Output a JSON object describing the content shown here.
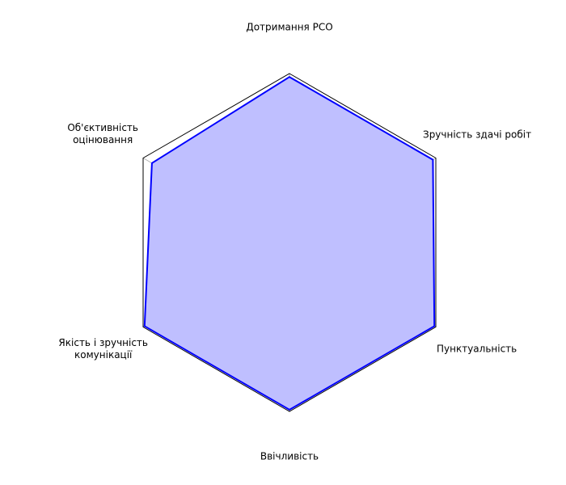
{
  "chart_data": {
    "type": "radar",
    "categories": [
      "Дотримання РСО",
      "Зручність здачі робіт",
      "Пунктуальність",
      "Ввічливість",
      "Якість і зручність\nкомунікації",
      "Об'єктивність\nоцінювання"
    ],
    "series": [
      {
        "values": [
          4.9,
          4.9,
          4.95,
          4.95,
          4.95,
          4.7
        ]
      }
    ],
    "rlim": [
      0,
      5
    ],
    "rticks": [
      1,
      2,
      3,
      4,
      5
    ],
    "grid": true,
    "legend": "none"
  },
  "colors": {
    "series_line": "#0000ff",
    "series_fill": "#bfbfff",
    "frame": "#000000",
    "grid": "#b0b0b0"
  }
}
